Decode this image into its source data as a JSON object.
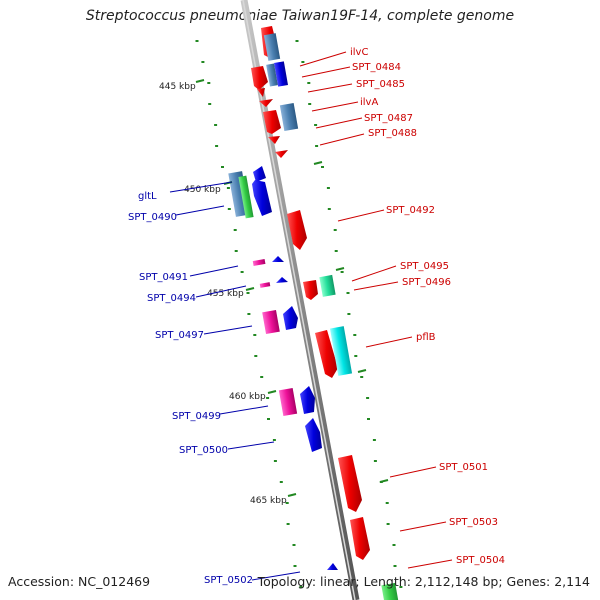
{
  "title": "Streptococcus pneumoniae Taiwan19F-14, complete genome",
  "accession": "Accession: NC_012469",
  "summary": "Topology: linear; Length: 2,112,148 bp; Genes: 2,114",
  "ticks": [
    "445 kbp",
    "450 kbp",
    "455 kbp",
    "460 kbp",
    "465 kbp"
  ],
  "forward_labels": [
    "ilvC",
    "SPT_0484",
    "SPT_0485",
    "ilvA",
    "SPT_0487",
    "SPT_0488",
    "SPT_0492",
    "SPT_0495",
    "SPT_0496",
    "pflB",
    "SPT_0501",
    "SPT_0503",
    "SPT_0504"
  ],
  "reverse_labels": [
    "gltL",
    "SPT_0490",
    "SPT_0491",
    "SPT_0494",
    "SPT_0497",
    "SPT_0499",
    "SPT_0500",
    "SPT_0502"
  ],
  "colors": {
    "forward_label": "#cc0000",
    "reverse_label": "#0000aa",
    "red_gene": "#ee0000",
    "blue_gene": "#0000dd",
    "steelblue_gene": "#4a7fb0",
    "green_gene": "#33cc44",
    "cyan_gene": "#00e5e5",
    "pink_gene": "#ee1199",
    "mint_gene": "#22dd99",
    "backbone": "#808080",
    "gc_dots": "#228822"
  }
}
